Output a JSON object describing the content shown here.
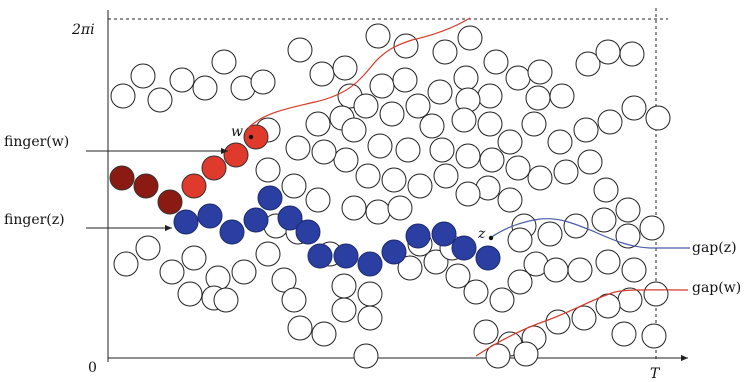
{
  "labels": {
    "y_top": "2πi",
    "origin": "0",
    "x_end": "T",
    "finger_w": "finger(w)",
    "finger_z": "finger(z)",
    "gap_z": "gap(z)",
    "gap_w": "gap(w)",
    "point_w": "w",
    "point_z": "z"
  },
  "colors": {
    "red_light": "#e03a2c",
    "red_dark": "#8b1a12",
    "blue_chain": "#2b3fa3",
    "red_curve": "#d33a2c",
    "blue_curve": "#4a5aa8"
  }
}
